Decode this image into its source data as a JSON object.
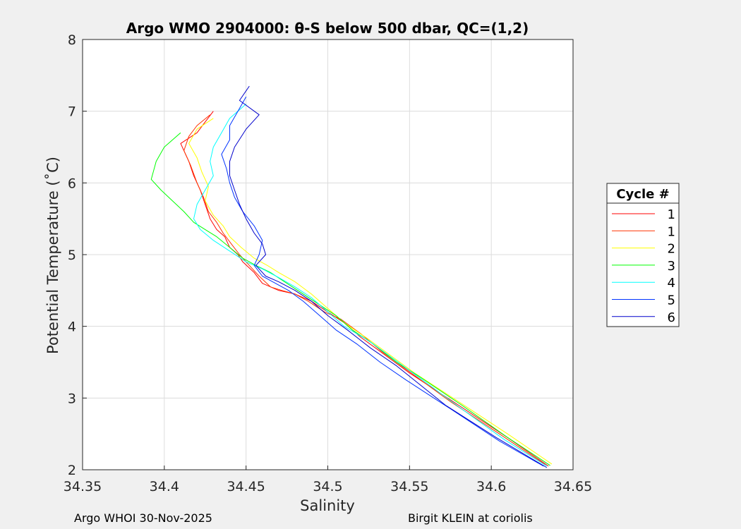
{
  "chart_data": {
    "type": "line",
    "title": "Argo WMO 2904000: θ-S below 500 dbar,  QC=(1,2)",
    "xlabel": "Salinity",
    "ylabel": "Potential Temperature (˚C)",
    "xlim": [
      34.35,
      34.65
    ],
    "ylim": [
      2,
      8
    ],
    "xticks": [
      34.35,
      34.4,
      34.45,
      34.5,
      34.55,
      34.6,
      34.65
    ],
    "xtick_labels": [
      "34.35",
      "34.4",
      "34.45",
      "34.5",
      "34.55",
      "34.6",
      "34.65"
    ],
    "yticks": [
      2,
      3,
      4,
      5,
      6,
      7,
      8
    ],
    "ytick_labels": [
      "2",
      "3",
      "4",
      "5",
      "6",
      "7",
      "8"
    ],
    "grid": true,
    "legend": {
      "title": "Cycle #",
      "placement": "outside-right"
    },
    "series": [
      {
        "name": "1",
        "color": "#ff0000",
        "x": [
          34.43,
          34.425,
          34.42,
          34.41,
          34.415,
          34.418,
          34.422,
          34.425,
          34.428,
          34.432,
          34.437,
          34.44,
          34.445,
          34.448,
          34.455,
          34.46,
          34.47,
          34.48,
          34.49,
          34.5,
          34.51,
          34.52,
          34.535,
          34.55,
          34.58,
          34.61,
          34.635
        ],
        "y": [
          7.0,
          6.85,
          6.7,
          6.55,
          6.3,
          6.1,
          5.9,
          5.7,
          5.5,
          5.35,
          5.25,
          5.1,
          5.0,
          4.9,
          4.75,
          4.6,
          4.5,
          4.45,
          4.35,
          4.2,
          4.05,
          3.85,
          3.6,
          3.35,
          2.9,
          2.45,
          2.05
        ]
      },
      {
        "name": "1",
        "color": "#ff3300",
        "x": [
          34.428,
          34.42,
          34.415,
          34.412,
          34.416,
          34.42,
          34.424,
          34.427,
          34.432,
          34.436,
          34.441,
          34.446,
          34.452,
          34.458,
          34.465,
          34.472,
          34.48,
          34.488,
          34.498,
          34.508,
          34.52,
          34.533,
          34.548,
          34.575,
          34.605,
          34.633
        ],
        "y": [
          6.95,
          6.8,
          6.65,
          6.45,
          6.25,
          6.0,
          5.8,
          5.6,
          5.45,
          5.3,
          5.15,
          5.0,
          4.85,
          4.7,
          4.55,
          4.5,
          4.45,
          4.35,
          4.2,
          4.1,
          3.9,
          3.65,
          3.4,
          2.95,
          2.5,
          2.07
        ]
      },
      {
        "name": "2",
        "color": "#ffff00",
        "x": [
          34.43,
          34.42,
          34.415,
          34.42,
          34.423,
          34.427,
          34.425,
          34.43,
          34.436,
          34.44,
          34.447,
          34.455,
          34.463,
          34.47,
          34.48,
          34.49,
          34.5,
          34.51,
          34.523,
          34.538,
          34.553,
          34.58,
          34.61,
          34.637
        ],
        "y": [
          6.9,
          6.75,
          6.55,
          6.35,
          6.15,
          5.95,
          5.75,
          5.55,
          5.4,
          5.25,
          5.1,
          4.95,
          4.85,
          4.75,
          4.62,
          4.45,
          4.25,
          4.05,
          3.85,
          3.6,
          3.35,
          2.95,
          2.5,
          2.08
        ]
      },
      {
        "name": "3",
        "color": "#00ff00",
        "x": [
          34.41,
          34.4,
          34.395,
          34.392,
          34.398,
          34.405,
          34.412,
          34.418,
          34.425,
          34.432,
          34.44,
          34.448,
          34.456,
          34.465,
          34.475,
          34.485,
          34.495,
          34.505,
          34.515,
          34.528,
          34.542,
          34.556,
          34.582,
          34.61,
          34.636
        ],
        "y": [
          6.7,
          6.5,
          6.3,
          6.05,
          5.9,
          5.75,
          5.6,
          5.45,
          5.35,
          5.25,
          5.1,
          4.95,
          4.85,
          4.75,
          4.6,
          4.45,
          4.3,
          4.15,
          3.95,
          3.75,
          3.5,
          3.3,
          2.9,
          2.45,
          2.06
        ]
      },
      {
        "name": "4",
        "color": "#00ffff",
        "x": [
          34.45,
          34.44,
          34.435,
          34.43,
          34.428,
          34.43,
          34.425,
          34.42,
          34.418,
          34.422,
          34.43,
          34.44,
          34.45,
          34.46,
          34.47,
          34.48,
          34.49,
          34.5,
          34.51,
          34.525,
          34.54,
          34.555,
          34.58,
          34.608,
          34.634
        ],
        "y": [
          7.1,
          6.9,
          6.7,
          6.5,
          6.3,
          6.1,
          5.9,
          5.7,
          5.5,
          5.35,
          5.2,
          5.05,
          4.9,
          4.8,
          4.68,
          4.55,
          4.4,
          4.2,
          4.0,
          3.8,
          3.55,
          3.3,
          2.88,
          2.42,
          2.05
        ]
      },
      {
        "name": "5",
        "color": "#0033ff",
        "x": [
          34.45,
          34.445,
          34.44,
          34.44,
          34.435,
          34.438,
          34.44,
          34.443,
          34.448,
          34.455,
          34.46,
          34.458,
          34.455,
          34.46,
          34.468,
          34.476,
          34.485,
          34.495,
          34.505,
          34.518,
          34.532,
          34.548,
          34.575,
          34.605,
          34.632
        ],
        "y": [
          7.2,
          7.0,
          6.8,
          6.6,
          6.4,
          6.2,
          6.0,
          5.8,
          5.6,
          5.4,
          5.2,
          5.0,
          4.85,
          4.7,
          4.6,
          4.5,
          4.35,
          4.15,
          3.95,
          3.75,
          3.5,
          3.25,
          2.85,
          2.4,
          2.05
        ]
      },
      {
        "name": "6",
        "color": "#0000cc",
        "x": [
          34.452,
          34.446,
          34.458,
          34.45,
          34.443,
          34.44,
          34.44,
          34.443,
          34.446,
          34.45,
          34.455,
          34.46,
          34.462,
          34.456,
          34.462,
          34.47,
          34.48,
          34.49,
          34.5,
          34.512,
          34.526,
          34.542,
          34.572,
          34.603,
          34.634
        ],
        "y": [
          7.35,
          7.15,
          6.95,
          6.75,
          6.5,
          6.3,
          6.1,
          5.9,
          5.7,
          5.5,
          5.3,
          5.15,
          5.0,
          4.85,
          4.7,
          4.62,
          4.5,
          4.35,
          4.15,
          3.95,
          3.7,
          3.45,
          2.9,
          2.45,
          2.03
        ]
      }
    ]
  },
  "footer": {
    "left": "Argo WHOI 30-Nov-2025",
    "right": "Birgit KLEIN at coriolis"
  }
}
